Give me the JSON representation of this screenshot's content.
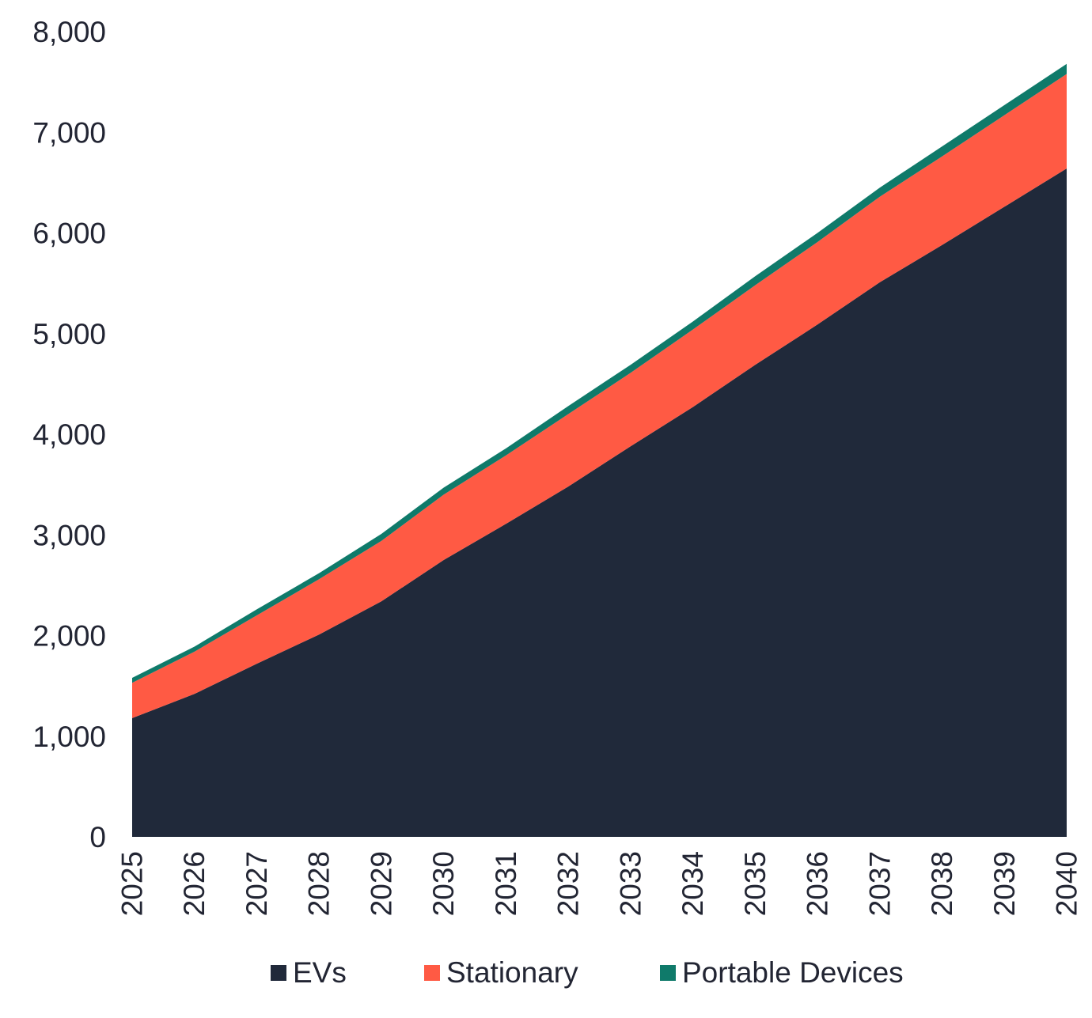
{
  "chart_data": {
    "type": "area",
    "stacked": true,
    "x": [
      "2025",
      "2026",
      "2027",
      "2028",
      "2029",
      "2030",
      "2031",
      "2032",
      "2033",
      "2034",
      "2035",
      "2036",
      "2037",
      "2038",
      "2039",
      "2040"
    ],
    "series": [
      {
        "name": "EVs",
        "color": "#20293A",
        "values": [
          1180,
          1420,
          1720,
          2010,
          2340,
          2750,
          3110,
          3480,
          3880,
          4270,
          4690,
          5090,
          5510,
          5880,
          6260,
          6640
        ]
      },
      {
        "name": "Stationary",
        "color": "#FF5A44",
        "values": [
          350,
          420,
          480,
          550,
          600,
          650,
          680,
          720,
          730,
          770,
          790,
          820,
          850,
          880,
          910,
          940
        ]
      },
      {
        "name": "Portable Devices",
        "color": "#0F7A6A",
        "values": [
          50,
          50,
          60,
          60,
          70,
          70,
          70,
          80,
          80,
          80,
          90,
          90,
          90,
          100,
          100,
          100
        ]
      }
    ],
    "ylim": [
      0,
      8000
    ],
    "yticks": [
      0,
      1000,
      2000,
      3000,
      4000,
      5000,
      6000,
      7000,
      8000
    ],
    "ytick_labels": [
      "0",
      "1,000",
      "2,000",
      "3,000",
      "4,000",
      "5,000",
      "6,000",
      "7,000",
      "8,000"
    ],
    "xtick_labels": [
      "2025",
      "2026",
      "2027",
      "2028",
      "2029",
      "2030",
      "2031",
      "2032",
      "2033",
      "2034",
      "2035",
      "2036",
      "2037",
      "2038",
      "2039",
      "2040"
    ],
    "grid": false,
    "legend_position": "bottom",
    "title": "",
    "xlabel": "",
    "ylabel": ""
  }
}
